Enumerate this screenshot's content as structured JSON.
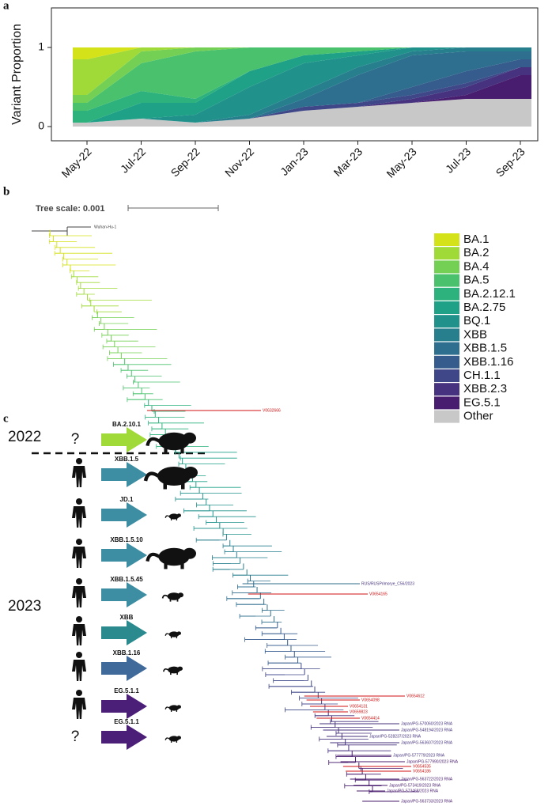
{
  "chart_data": {
    "type": "stacked_area",
    "panel": "a",
    "ylabel": "Variant Proportion",
    "categories": [
      "May-22",
      "Jul-22",
      "Sep-22",
      "Nov-22",
      "Jan-23",
      "Mar-23",
      "May-23",
      "Jul-23",
      "Sep-23"
    ],
    "ylim": [
      -0.18,
      1.5
    ],
    "yticks": [
      0,
      1
    ],
    "series": [
      {
        "name": "BA.1",
        "color": "#d4e21a",
        "values": [
          0.15,
          0,
          0,
          0,
          0,
          0,
          0,
          0,
          0
        ]
      },
      {
        "name": "BA.2",
        "color": "#a0da39",
        "values": [
          0.45,
          0.05,
          0,
          0,
          0,
          0,
          0,
          0,
          0
        ]
      },
      {
        "name": "BA.4",
        "color": "#74d055",
        "values": [
          0.1,
          0.15,
          0.05,
          0,
          0,
          0,
          0,
          0,
          0
        ]
      },
      {
        "name": "BA.5",
        "color": "#4ac16d",
        "values": [
          0.1,
          0.35,
          0.6,
          0.3,
          0.1,
          0.05,
          0,
          0,
          0
        ]
      },
      {
        "name": "BA.2.12.1",
        "color": "#2db27d",
        "values": [
          0.15,
          0.15,
          0.05,
          0,
          0,
          0,
          0,
          0,
          0
        ]
      },
      {
        "name": "BA.2.75",
        "color": "#1fa187",
        "values": [
          0,
          0.2,
          0.15,
          0.2,
          0.1,
          0.05,
          0,
          0,
          0
        ]
      },
      {
        "name": "BQ.1",
        "color": "#21918c",
        "values": [
          0,
          0,
          0.1,
          0.35,
          0.35,
          0.15,
          0.05,
          0,
          0
        ]
      },
      {
        "name": "XBB",
        "color": "#277f8e",
        "values": [
          0,
          0,
          0,
          0.05,
          0.1,
          0.1,
          0.05,
          0.05,
          0.05
        ]
      },
      {
        "name": "XBB.1.5",
        "color": "#2e6e8e",
        "values": [
          0,
          0,
          0,
          0,
          0.1,
          0.35,
          0.4,
          0.25,
          0.1
        ]
      },
      {
        "name": "XBB.1.16",
        "color": "#365c8d",
        "values": [
          0,
          0,
          0,
          0,
          0,
          0,
          0.1,
          0.15,
          0.1
        ]
      },
      {
        "name": "CH.1.1",
        "color": "#3f4788",
        "values": [
          0,
          0,
          0,
          0,
          0.05,
          0.05,
          0.05,
          0.05,
          0
        ]
      },
      {
        "name": "XBB.2.3",
        "color": "#46327e",
        "values": [
          0,
          0,
          0,
          0,
          0,
          0,
          0.05,
          0.1,
          0.1
        ]
      },
      {
        "name": "EG.5.1",
        "color": "#481c6e",
        "values": [
          0,
          0,
          0,
          0,
          0,
          0,
          0,
          0.05,
          0.3
        ]
      },
      {
        "name": "Other",
        "color": "#c8c8c8",
        "values": [
          0.05,
          0.1,
          0.05,
          0.1,
          0.2,
          0.25,
          0.3,
          0.35,
          0.35
        ]
      }
    ]
  },
  "tree": {
    "panel": "b",
    "scale_label": "Tree scale: 0.001",
    "leaves": [
      {
        "label": "Wuhan-Hu-1",
        "color": "#444444"
      },
      {
        "label": "V0632666",
        "color": "#d01010"
      },
      {
        "label": "RUS/RUSPrimorye_C56/2023",
        "color": "#46327e"
      },
      {
        "label": "V0654165",
        "color": "#d01010"
      },
      {
        "label": "V0654612",
        "color": "#d01010"
      },
      {
        "label": "V0654098",
        "color": "#d01010"
      },
      {
        "label": "V0654131",
        "color": "#d01010"
      },
      {
        "label": "V0659823",
        "color": "#d01010"
      },
      {
        "label": "V0654414",
        "color": "#d01010"
      },
      {
        "label": "Japan/PG-570060/2023 RNA",
        "color": "#46327e"
      },
      {
        "label": "Japan/PG-548194/2023 RNA",
        "color": "#46327e"
      },
      {
        "label": "Japan/PG-528237/2023 RNA",
        "color": "#46327e"
      },
      {
        "label": "Japan/PG-563607/2023 RNA",
        "color": "#46327e"
      },
      {
        "label": "Japan/PG-577779/2023 RNA",
        "color": "#46327e"
      },
      {
        "label": "Japan/PG-577990/2023 RNA",
        "color": "#481c6e"
      },
      {
        "label": "V0654535",
        "color": "#d01010"
      },
      {
        "label": "V0654186",
        "color": "#d01010"
      },
      {
        "label": "Japan/PG-563722/2023 RNA",
        "color": "#481c6e"
      },
      {
        "label": "Japan/PG-573419/2023 RNA",
        "color": "#481c6e"
      },
      {
        "label": "Japan/PG-573468/2023 RNA",
        "color": "#481c6e"
      },
      {
        "label": "Japan/PG-563733/2023 RNA",
        "color": "#481c6e"
      }
    ]
  },
  "transmission": {
    "panel": "c",
    "years": [
      "2022",
      "2023"
    ],
    "unknown_host": "?",
    "rows": [
      {
        "variant": "BA.2.10.1",
        "color": "#a0da39"
      },
      {
        "variant": "XBB.1.5",
        "color": "#3d8ea3"
      },
      {
        "variant": "JD.1",
        "color": "#3d8ea3"
      },
      {
        "variant": "XBB.1.5.10",
        "color": "#3d8ea3"
      },
      {
        "variant": "XBB.1.5.45",
        "color": "#3d8ea3"
      },
      {
        "variant": "XBB",
        "color": "#2a8a8e"
      },
      {
        "variant": "XBB.1.16",
        "color": "#3f6a9a"
      },
      {
        "variant": "EG.5.1.1",
        "color": "#4b1e78"
      },
      {
        "variant": "EG.5.1.1",
        "color": "#4b1e78"
      }
    ]
  }
}
